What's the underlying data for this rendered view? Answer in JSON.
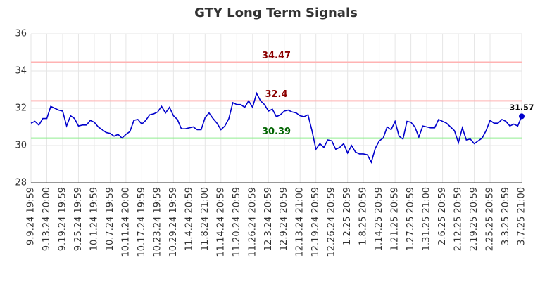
{
  "chart_data": {
    "type": "line",
    "title": "GTY Long Term Signals",
    "categories": [
      "9.9.24 19:59",
      null,
      null,
      null,
      "9.13.24 20:00",
      null,
      null,
      null,
      "9.19.24 19:59",
      null,
      null,
      null,
      "9.25.24 19:59",
      null,
      null,
      null,
      "10.1.24 19:59",
      null,
      null,
      null,
      "10.7.24 19:59",
      null,
      null,
      null,
      "10.11.24 20:00",
      null,
      null,
      null,
      "10.17.24 19:59",
      null,
      null,
      null,
      "10.23.24 19:59",
      null,
      null,
      null,
      "10.29.24 19:59",
      null,
      null,
      null,
      "11.4.24 20:59",
      null,
      null,
      null,
      "11.8.24 21:00",
      null,
      null,
      null,
      "11.14.24 20:59",
      null,
      null,
      null,
      "11.20.24 20:59",
      null,
      null,
      null,
      "11.26.24 20:59",
      null,
      null,
      null,
      "12.3.24 20:59",
      null,
      null,
      null,
      "12.9.24 20:59",
      null,
      null,
      null,
      "12.13.24 21:00",
      null,
      null,
      null,
      "12.19.24 20:59",
      null,
      null,
      null,
      "12.26.24 20:59",
      null,
      null,
      null,
      "1.2.25 20:59",
      null,
      null,
      null,
      "1.8.25 20:59",
      null,
      null,
      null,
      "1.14.25 20:59",
      null,
      null,
      null,
      "1.21.25 20:59",
      null,
      null,
      null,
      "1.27.25 20:59",
      null,
      null,
      null,
      "1.31.25 21:00",
      null,
      null,
      null,
      "2.6.25 20:59",
      null,
      null,
      null,
      "2.12.25 20:59",
      null,
      null,
      null,
      "2.19.25 20:59",
      null,
      null,
      null,
      "2.25.25 20:59",
      null,
      null,
      null,
      "3.3.25 20:59",
      null,
      null,
      null,
      "3.7.25 21:00"
    ],
    "values": [
      31.2,
      31.3,
      31.1,
      31.45,
      31.45,
      32.1,
      32.0,
      31.9,
      31.85,
      31.05,
      31.6,
      31.45,
      31.05,
      31.1,
      31.1,
      31.35,
      31.25,
      31.0,
      30.85,
      30.7,
      30.65,
      30.5,
      30.6,
      30.4,
      30.6,
      30.75,
      31.35,
      31.4,
      31.15,
      31.35,
      31.65,
      31.7,
      31.8,
      32.1,
      31.75,
      32.05,
      31.6,
      31.4,
      30.9,
      30.9,
      30.95,
      31.0,
      30.85,
      30.85,
      31.5,
      31.75,
      31.45,
      31.2,
      30.85,
      31.05,
      31.45,
      32.3,
      32.2,
      32.2,
      32.05,
      32.4,
      32.05,
      32.8,
      32.4,
      32.2,
      31.85,
      31.95,
      31.55,
      31.65,
      31.85,
      31.9,
      31.8,
      31.75,
      31.6,
      31.55,
      31.65,
      30.8,
      29.8,
      30.1,
      29.9,
      30.3,
      30.25,
      29.8,
      29.9,
      30.1,
      29.6,
      30.0,
      29.65,
      29.55,
      29.55,
      29.5,
      29.1,
      29.85,
      30.25,
      30.4,
      31.0,
      30.85,
      31.3,
      30.5,
      30.35,
      31.3,
      31.25,
      31.0,
      30.45,
      31.05,
      31.0,
      30.95,
      30.95,
      31.4,
      31.3,
      31.2,
      31.0,
      30.8,
      30.15,
      30.95,
      30.3,
      30.35,
      30.1,
      30.25,
      30.4,
      30.8,
      31.35,
      31.2,
      31.2,
      31.4,
      31.3,
      31.05,
      31.15,
      31.05,
      31.57
    ],
    "color": "#0000cc",
    "signals": [
      {
        "value": 34.47,
        "color": "#ffb3b3",
        "label_color": "#8b0000"
      },
      {
        "value": 32.4,
        "color": "#ffb3b3",
        "label_color": "#8b0000"
      },
      {
        "value": 30.39,
        "color": "#90ee90",
        "label_color": "#006400"
      }
    ],
    "ylim": [
      28,
      36
    ],
    "yticks": [
      28,
      30,
      32,
      34,
      36
    ],
    "grid": true
  }
}
